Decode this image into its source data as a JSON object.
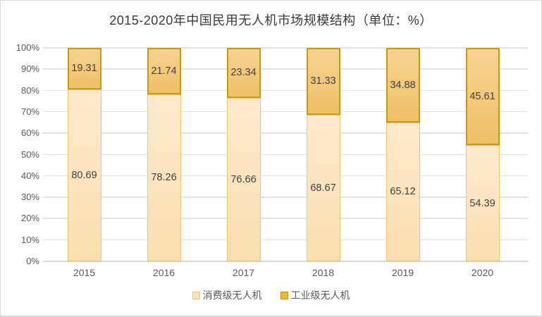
{
  "title": "2015-2020年中国民用无人机市场规模结构（单位：%）",
  "chart_data": {
    "type": "bar",
    "stacked": true,
    "stacked_to_100": true,
    "categories": [
      "2015",
      "2016",
      "2017",
      "2018",
      "2019",
      "2020"
    ],
    "series": [
      {
        "name": "消费级无人机",
        "values": [
          80.69,
          78.26,
          76.66,
          68.67,
          65.12,
          54.39
        ]
      },
      {
        "name": "工业级无人机",
        "values": [
          19.31,
          21.74,
          23.34,
          31.33,
          34.88,
          45.61
        ]
      }
    ],
    "ylabel": "",
    "xlabel": "",
    "ylim": [
      0,
      100
    ],
    "ytick_step": 10,
    "ytick_suffix": "%",
    "grid": true,
    "legend_position": "bottom",
    "data_labels": true
  },
  "colors": {
    "consumer_fill": "#fbdfb0",
    "consumer_border": "#f0c468",
    "industrial_fill": "#f2c674",
    "industrial_border": "#cd9902",
    "gridline": "#e2e2e2",
    "axis_text": "#595959",
    "value_text": "#3f3f3f",
    "title_text": "#383838",
    "card_border": "#dcdcdc"
  }
}
